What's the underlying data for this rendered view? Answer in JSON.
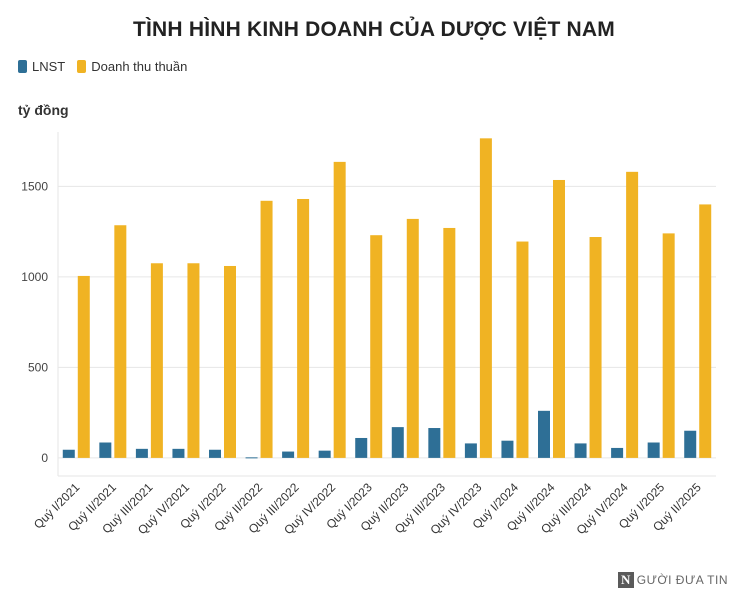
{
  "chart_data": {
    "type": "bar",
    "title": "TÌNH HÌNH KINH DOANH CỦA DƯỢC VIỆT NAM",
    "ylabel": "tỷ đồng",
    "xlabel": "",
    "ylim": [
      -100,
      1800
    ],
    "yticks": [
      0,
      500,
      1000,
      1500
    ],
    "grid": true,
    "legend_position": "top-left",
    "categories": [
      "Quý I/2021",
      "Quý II/2021",
      "Quý III/2021",
      "Quý IV/2021",
      "Quý I/2022",
      "Quý II/2022",
      "Quý III/2022",
      "Quý IV/2022",
      "Quý I/2023",
      "Quý II/2023",
      "Quý III/2023",
      "Quý IV/2023",
      "Quý I/2024",
      "Quý II/2024",
      "Quý III/2024",
      "Quý IV/2024",
      "Quý I/2025",
      "Quý II/2025"
    ],
    "series": [
      {
        "name": "LNST",
        "color": "#2e6f96",
        "values": [
          45,
          85,
          50,
          50,
          45,
          3,
          35,
          40,
          110,
          170,
          165,
          80,
          95,
          260,
          80,
          55,
          85,
          150
        ]
      },
      {
        "name": "Doanh thu thuần",
        "color": "#f0b323",
        "values": [
          1005,
          1285,
          1075,
          1075,
          1060,
          1420,
          1430,
          1635,
          1230,
          1320,
          1270,
          1765,
          1195,
          1535,
          1220,
          1580,
          1240,
          1400
        ]
      }
    ]
  },
  "watermark": {
    "logo_letter": "N",
    "text": "GƯỜI ĐƯA TIN"
  }
}
